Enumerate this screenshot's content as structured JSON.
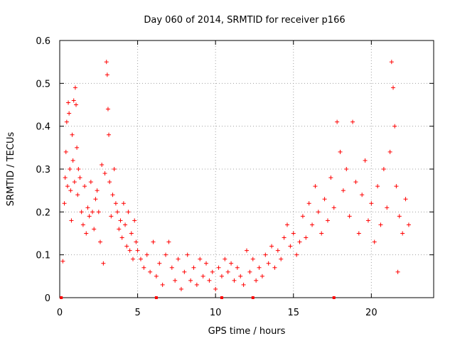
{
  "chart_data": {
    "type": "scatter",
    "title": "Day 060 of 2014, SRMTID for receiver p166",
    "xlabel": "GPS time / hours",
    "ylabel": "SRMTID / TECUs",
    "xlim": [
      0,
      24
    ],
    "ylim": [
      0,
      0.6
    ],
    "xticks": [
      0,
      5,
      10,
      15,
      20
    ],
    "yticks": [
      0,
      0.1,
      0.2,
      0.3,
      0.4,
      0.5,
      0.6
    ],
    "xtick_labels": [
      "0",
      "5",
      "10",
      "15",
      "20"
    ],
    "ytick_labels": [
      "0",
      "0.1",
      "0.2",
      "0.3",
      "0.4",
      "0.5",
      "0.6"
    ],
    "grid": true,
    "marker": "+",
    "series_color": "#ff0000",
    "series": [
      {
        "name": "SRMTID",
        "points": [
          [
            0.2,
            0.085
          ],
          [
            0.3,
            0.22
          ],
          [
            0.35,
            0.28
          ],
          [
            0.4,
            0.34
          ],
          [
            0.45,
            0.41
          ],
          [
            0.5,
            0.26
          ],
          [
            0.55,
            0.455
          ],
          [
            0.6,
            0.43
          ],
          [
            0.65,
            0.3
          ],
          [
            0.7,
            0.25
          ],
          [
            0.75,
            0.18
          ],
          [
            0.8,
            0.38
          ],
          [
            0.85,
            0.32
          ],
          [
            0.9,
            0.46
          ],
          [
            0.95,
            0.27
          ],
          [
            1.0,
            0.49
          ],
          [
            1.05,
            0.45
          ],
          [
            1.1,
            0.35
          ],
          [
            1.15,
            0.24
          ],
          [
            1.2,
            0.3
          ],
          [
            1.3,
            0.28
          ],
          [
            1.4,
            0.2
          ],
          [
            1.5,
            0.17
          ],
          [
            1.6,
            0.26
          ],
          [
            1.7,
            0.15
          ],
          [
            1.8,
            0.21
          ],
          [
            1.9,
            0.19
          ],
          [
            2.0,
            0.27
          ],
          [
            2.1,
            0.2
          ],
          [
            2.2,
            0.16
          ],
          [
            2.3,
            0.23
          ],
          [
            2.4,
            0.25
          ],
          [
            2.5,
            0.2
          ],
          [
            2.6,
            0.13
          ],
          [
            2.7,
            0.31
          ],
          [
            2.8,
            0.08
          ],
          [
            2.9,
            0.29
          ],
          [
            3.0,
            0.55
          ],
          [
            3.05,
            0.52
          ],
          [
            3.1,
            0.44
          ],
          [
            3.15,
            0.38
          ],
          [
            3.2,
            0.27
          ],
          [
            3.3,
            0.19
          ],
          [
            3.4,
            0.24
          ],
          [
            3.5,
            0.3
          ],
          [
            3.6,
            0.22
          ],
          [
            3.7,
            0.2
          ],
          [
            3.8,
            0.16
          ],
          [
            3.9,
            0.18
          ],
          [
            4.0,
            0.14
          ],
          [
            4.1,
            0.22
          ],
          [
            4.2,
            0.17
          ],
          [
            4.3,
            0.12
          ],
          [
            4.4,
            0.2
          ],
          [
            4.5,
            0.11
          ],
          [
            4.6,
            0.15
          ],
          [
            4.7,
            0.09
          ],
          [
            4.8,
            0.18
          ],
          [
            4.9,
            0.13
          ],
          [
            5.0,
            0.11
          ],
          [
            5.2,
            0.09
          ],
          [
            5.4,
            0.07
          ],
          [
            5.6,
            0.1
          ],
          [
            5.8,
            0.06
          ],
          [
            6.0,
            0.13
          ],
          [
            6.2,
            0.05
          ],
          [
            6.4,
            0.08
          ],
          [
            6.6,
            0.03
          ],
          [
            6.8,
            0.1
          ],
          [
            7.0,
            0.13
          ],
          [
            7.2,
            0.07
          ],
          [
            7.4,
            0.04
          ],
          [
            7.6,
            0.09
          ],
          [
            7.8,
            0.02
          ],
          [
            8.0,
            0.06
          ],
          [
            8.2,
            0.1
          ],
          [
            8.4,
            0.04
          ],
          [
            8.6,
            0.07
          ],
          [
            8.8,
            0.03
          ],
          [
            9.0,
            0.09
          ],
          [
            9.2,
            0.05
          ],
          [
            9.4,
            0.08
          ],
          [
            9.6,
            0.04
          ],
          [
            9.8,
            0.06
          ],
          [
            10.0,
            0.02
          ],
          [
            10.2,
            0.07
          ],
          [
            10.4,
            0.05
          ],
          [
            10.6,
            0.09
          ],
          [
            10.8,
            0.06
          ],
          [
            11.0,
            0.08
          ],
          [
            11.2,
            0.04
          ],
          [
            11.4,
            0.07
          ],
          [
            11.6,
            0.05
          ],
          [
            11.8,
            0.03
          ],
          [
            12.0,
            0.11
          ],
          [
            12.2,
            0.06
          ],
          [
            12.4,
            0.09
          ],
          [
            12.6,
            0.04
          ],
          [
            12.8,
            0.07
          ],
          [
            13.0,
            0.05
          ],
          [
            13.2,
            0.1
          ],
          [
            13.4,
            0.08
          ],
          [
            13.6,
            0.12
          ],
          [
            13.8,
            0.07
          ],
          [
            14.0,
            0.11
          ],
          [
            14.2,
            0.09
          ],
          [
            14.4,
            0.14
          ],
          [
            14.6,
            0.17
          ],
          [
            14.8,
            0.12
          ],
          [
            15.0,
            0.15
          ],
          [
            15.2,
            0.1
          ],
          [
            15.4,
            0.13
          ],
          [
            15.6,
            0.19
          ],
          [
            15.8,
            0.14
          ],
          [
            16.0,
            0.22
          ],
          [
            16.2,
            0.17
          ],
          [
            16.4,
            0.26
          ],
          [
            16.6,
            0.2
          ],
          [
            16.8,
            0.15
          ],
          [
            17.0,
            0.23
          ],
          [
            17.2,
            0.18
          ],
          [
            17.4,
            0.28
          ],
          [
            17.6,
            0.21
          ],
          [
            17.8,
            0.41
          ],
          [
            18.0,
            0.34
          ],
          [
            18.2,
            0.25
          ],
          [
            18.4,
            0.3
          ],
          [
            18.6,
            0.19
          ],
          [
            18.8,
            0.41
          ],
          [
            19.0,
            0.27
          ],
          [
            19.2,
            0.15
          ],
          [
            19.4,
            0.24
          ],
          [
            19.6,
            0.32
          ],
          [
            19.8,
            0.18
          ],
          [
            20.0,
            0.22
          ],
          [
            20.2,
            0.13
          ],
          [
            20.4,
            0.26
          ],
          [
            20.6,
            0.17
          ],
          [
            20.8,
            0.3
          ],
          [
            21.0,
            0.21
          ],
          [
            21.2,
            0.34
          ],
          [
            21.3,
            0.55
          ],
          [
            21.4,
            0.49
          ],
          [
            21.5,
            0.4
          ],
          [
            21.6,
            0.26
          ],
          [
            21.7,
            0.06
          ],
          [
            21.8,
            0.19
          ],
          [
            22.0,
            0.15
          ],
          [
            22.2,
            0.23
          ],
          [
            22.4,
            0.17
          ]
        ]
      }
    ],
    "ground_markers_x": [
      0.1,
      6.2,
      10.4,
      12.4,
      17.6
    ]
  }
}
